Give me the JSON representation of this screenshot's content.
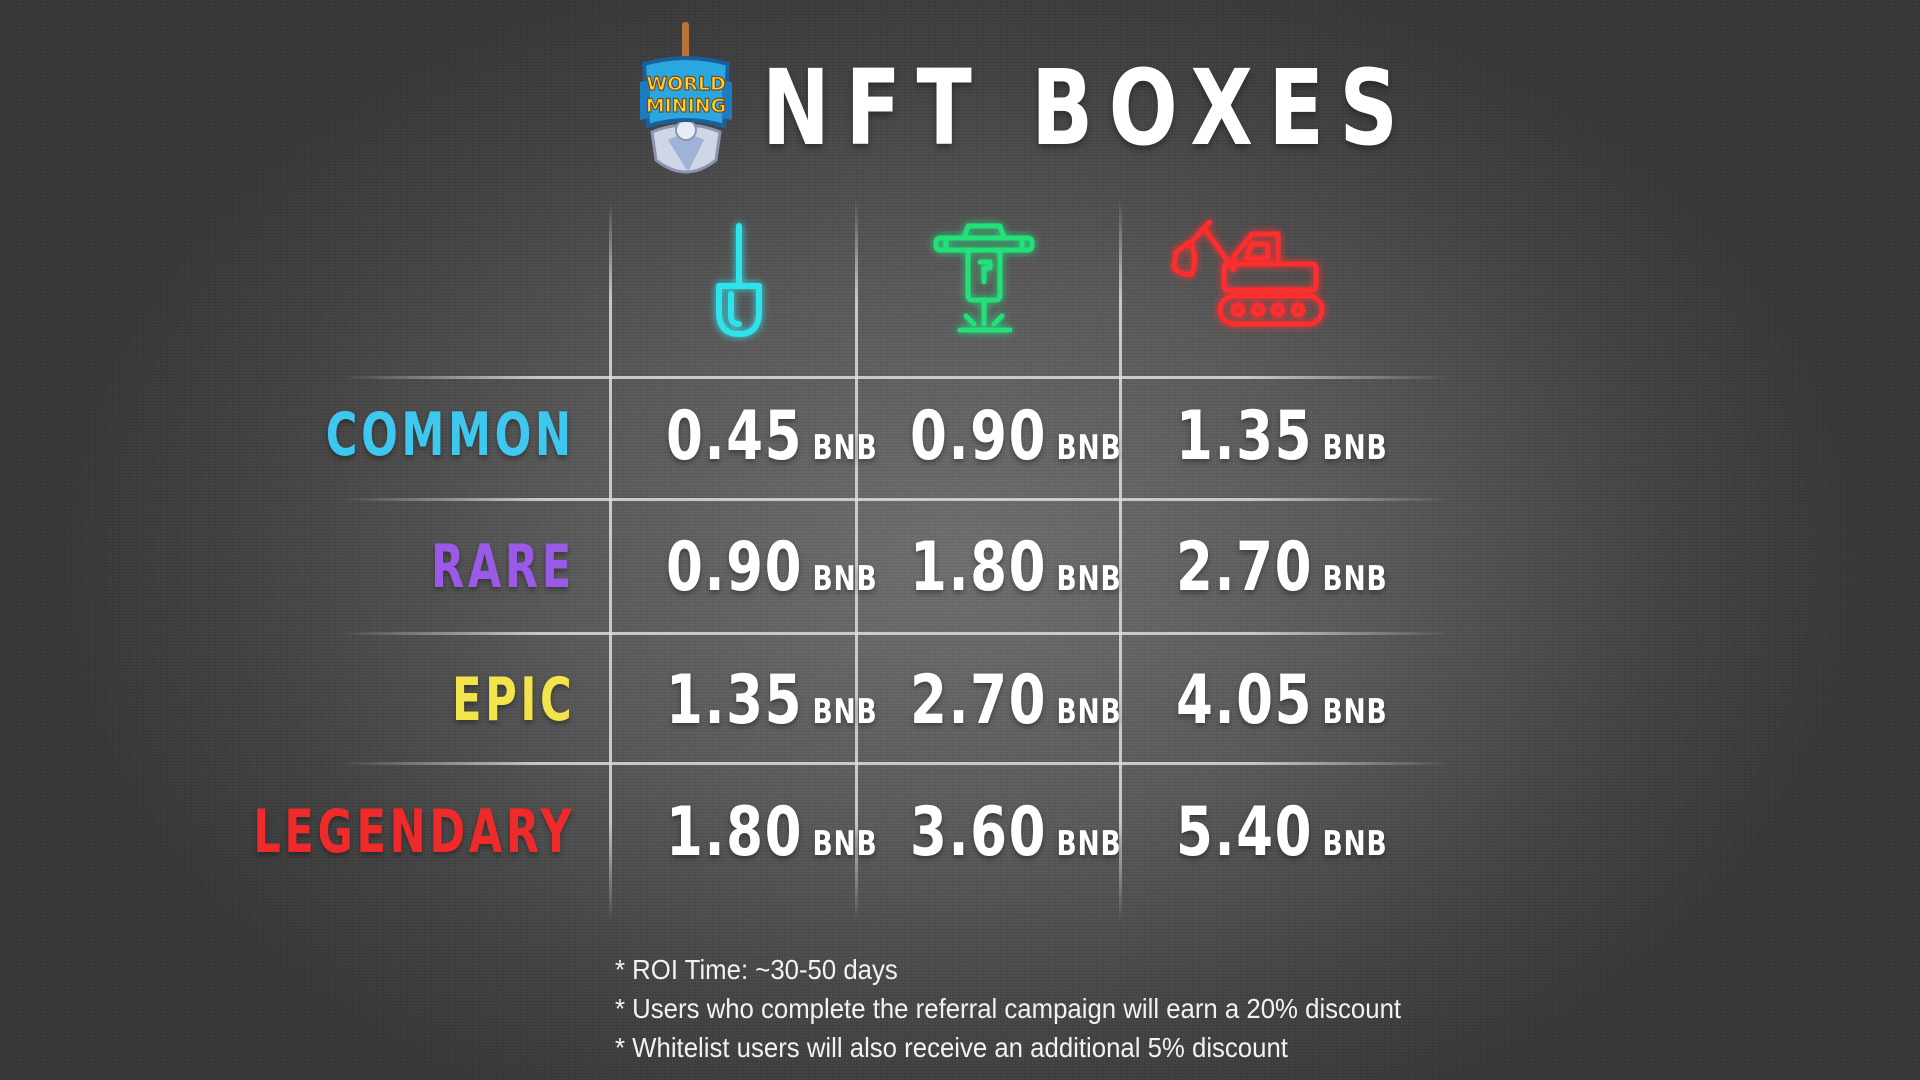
{
  "header": {
    "title": "NFT BOXES",
    "logo": {
      "icon": "world-mining-logo-icon",
      "text_line1": "WORLD",
      "text_line2": "MINING"
    }
  },
  "colors": {
    "common": "#3ec8f0",
    "rare": "#9b59e8",
    "epic": "#f2e44a",
    "legendary": "#ee2a2a",
    "shovel": "#2fe3ec",
    "jackhammer": "#21e07a",
    "excavator": "#ff2d2d"
  },
  "columns": [
    {
      "icon": "shovel-icon"
    },
    {
      "icon": "jackhammer-icon"
    },
    {
      "icon": "excavator-icon"
    }
  ],
  "rows": [
    {
      "label": "COMMON",
      "prices": [
        "0.45",
        "0.90",
        "1.35"
      ]
    },
    {
      "label": "RARE",
      "prices": [
        "0.90",
        "1.80",
        "2.70"
      ]
    },
    {
      "label": "EPIC",
      "prices": [
        "1.35",
        "2.70",
        "4.05"
      ]
    },
    {
      "label": "LEGENDARY",
      "prices": [
        "1.80",
        "3.60",
        "5.40"
      ]
    }
  ],
  "unit": "BNB",
  "notes": [
    "* ROI Time: ~30-50 days",
    "* Users who complete the referral campaign will earn a 20% discount",
    "* Whitelist users will also receive an additional 5% discount"
  ]
}
